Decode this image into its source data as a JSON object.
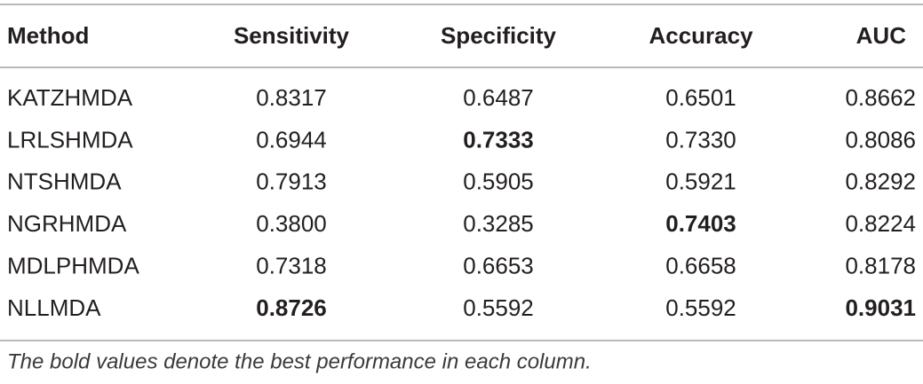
{
  "table": {
    "header": [
      "Method",
      "Sensitivity",
      "Specificity",
      "Accuracy",
      "AUC"
    ],
    "rows": [
      [
        "KATZHMDA",
        "0.8317",
        "0.6487",
        "0.6501",
        "0.8662"
      ],
      [
        "LRLSHMDA",
        "0.6944",
        "0.7333",
        "0.7330",
        "0.8086"
      ],
      [
        "NTSHMDA",
        "0.7913",
        "0.5905",
        "0.5921",
        "0.8292"
      ],
      [
        "NGRHMDA",
        "0.3800",
        "0.3285",
        "0.7403",
        "0.8224"
      ],
      [
        "MDLPHMDA",
        "0.7318",
        "0.6653",
        "0.6658",
        "0.8178"
      ],
      [
        "NLLMDA",
        "0.8726",
        "0.5592",
        "0.5592",
        "0.9031"
      ]
    ],
    "bold_cells": [
      {
        "row": 1,
        "col": 2
      },
      {
        "row": 3,
        "col": 3
      },
      {
        "row": 5,
        "col": 1
      },
      {
        "row": 5,
        "col": 4
      }
    ],
    "footnote": "The bold values denote the best performance in each column."
  }
}
